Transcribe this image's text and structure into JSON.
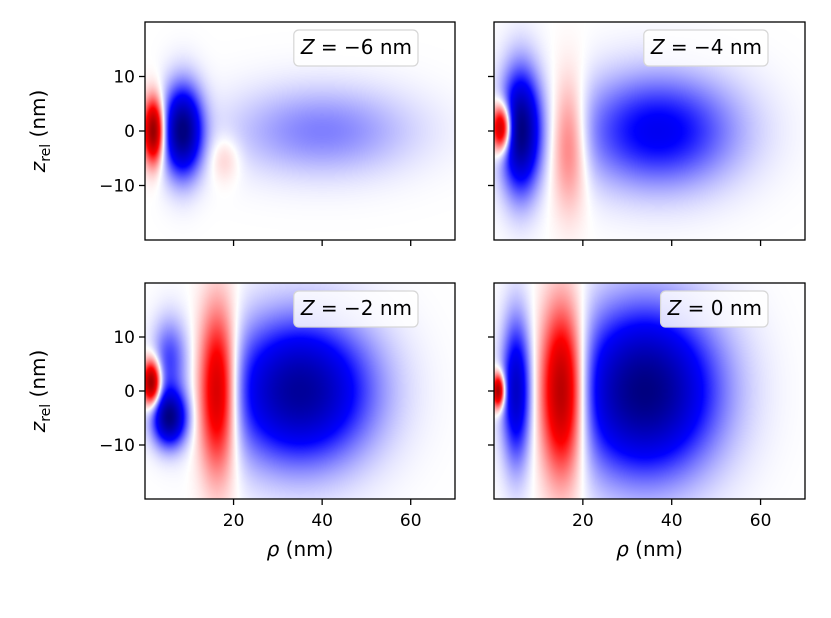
{
  "chart_data": [
    {
      "type": "heatmap",
      "annotation": "Z = −6 nm",
      "annotation_parts": {
        "var": "Z",
        "eq": " = −6 nm"
      },
      "xlim": [
        0,
        70
      ],
      "ylim": [
        -20,
        20
      ],
      "xticks": [
        20,
        40,
        60
      ],
      "yticks": [
        10,
        0,
        -10
      ],
      "xtick_labels": [
        "",
        "",
        ""
      ],
      "ytick_labels": [
        "10",
        "0",
        "−10"
      ],
      "xlabel": "",
      "ylabel": "z_rel (nm)",
      "ylabel_parts": {
        "main": "z",
        "sub": "rel",
        "rest": " (nm)"
      },
      "colormap": "bwr",
      "color_range": [
        -1,
        1
      ],
      "lobes": [
        {
          "rho": 2.0,
          "z": 0.0,
          "sigma_rho": 1.6,
          "sigma_z": 4.0,
          "amp": 1.0
        },
        {
          "rho": 8.5,
          "z": 0.0,
          "sigma_rho": 3.0,
          "sigma_z": 5.5,
          "amp": -1.0
        },
        {
          "rho": 18.0,
          "z": -5.0,
          "sigma_rho": 2.5,
          "sigma_z": 3.0,
          "amp": 0.12
        },
        {
          "rho": 40.0,
          "z": 0.0,
          "sigma_rho": 14.0,
          "sigma_z": 5.5,
          "amp": -0.25
        }
      ]
    },
    {
      "type": "heatmap",
      "annotation": "Z = −4 nm",
      "annotation_parts": {
        "var": "Z",
        "eq": " = −4 nm"
      },
      "xlim": [
        0,
        70
      ],
      "ylim": [
        -20,
        20
      ],
      "xticks": [
        20,
        40,
        60
      ],
      "yticks": [
        10,
        0,
        -10
      ],
      "xtick_labels": [
        "",
        "",
        ""
      ],
      "ytick_labels": [
        "",
        "",
        ""
      ],
      "xlabel": "",
      "ylabel": "",
      "colormap": "bwr",
      "color_range": [
        -1,
        1
      ],
      "lobes": [
        {
          "rho": 1.8,
          "z": 0.5,
          "sigma_rho": 1.6,
          "sigma_z": 3.0,
          "amp": 1.0
        },
        {
          "rho": 6.0,
          "z": 0.0,
          "sigma_rho": 3.0,
          "sigma_z": 7.5,
          "amp": -1.0
        },
        {
          "rho": 17.0,
          "z": -2.0,
          "sigma_rho": 2.8,
          "sigma_z": 8.0,
          "amp": 0.35
        },
        {
          "rho": 37.0,
          "z": 0.0,
          "sigma_rho": 12.0,
          "sigma_z": 7.0,
          "amp": -0.55
        }
      ]
    },
    {
      "type": "heatmap",
      "annotation": "Z = −2 nm",
      "annotation_parts": {
        "var": "Z",
        "eq": " = −2 nm"
      },
      "xlim": [
        0,
        70
      ],
      "ylim": [
        -20,
        20
      ],
      "xticks": [
        20,
        40,
        60
      ],
      "yticks": [
        10,
        0,
        -10
      ],
      "xtick_labels": [
        "20",
        "40",
        "60"
      ],
      "ytick_labels": [
        "10",
        "0",
        "−10"
      ],
      "xlabel": "ρ (nm)",
      "ylabel": "z_rel (nm)",
      "xlabel_parts": {
        "var": "ρ",
        "rest": " (nm)"
      },
      "ylabel_parts": {
        "main": "z",
        "sub": "rel",
        "rest": " (nm)"
      },
      "colormap": "bwr",
      "color_range": [
        -1,
        1
      ],
      "lobes": [
        {
          "rho": 1.5,
          "z": 1.5,
          "sigma_rho": 1.4,
          "sigma_z": 2.8,
          "amp": 1.0
        },
        {
          "rho": 5.5,
          "z": -5.0,
          "sigma_rho": 2.6,
          "sigma_z": 3.5,
          "amp": -0.95
        },
        {
          "rho": 5.5,
          "z": 6.0,
          "sigma_rho": 2.6,
          "sigma_z": 5.0,
          "amp": -0.35
        },
        {
          "rho": 16.5,
          "z": 0.0,
          "sigma_rho": 3.0,
          "sigma_z": 10.0,
          "amp": 0.85
        },
        {
          "rho": 35.0,
          "z": 0.0,
          "sigma_rho": 11.0,
          "sigma_z": 9.0,
          "amp": -0.9
        }
      ]
    },
    {
      "type": "heatmap",
      "annotation": "Z = 0 nm",
      "annotation_parts": {
        "var": "Z",
        "eq": " = 0 nm"
      },
      "xlim": [
        0,
        70
      ],
      "ylim": [
        -20,
        20
      ],
      "xticks": [
        20,
        40,
        60
      ],
      "yticks": [
        10,
        0,
        -10
      ],
      "xtick_labels": [
        "20",
        "40",
        "60"
      ],
      "ytick_labels": [
        "",
        "",
        ""
      ],
      "xlabel": "ρ (nm)",
      "ylabel": "",
      "xlabel_parts": {
        "var": "ρ",
        "rest": " (nm)"
      },
      "colormap": "bwr",
      "color_range": [
        -1,
        1
      ],
      "lobes": [
        {
          "rho": 1.0,
          "z": 0.0,
          "sigma_rho": 1.0,
          "sigma_z": 2.2,
          "amp": 0.95
        },
        {
          "rho": 5.0,
          "z": 0.0,
          "sigma_rho": 2.2,
          "sigma_z": 9.0,
          "amp": -0.7
        },
        {
          "rho": 15.5,
          "z": 0.0,
          "sigma_rho": 3.5,
          "sigma_z": 10.5,
          "amp": 1.0
        },
        {
          "rho": 34.0,
          "z": 0.0,
          "sigma_rho": 11.0,
          "sigma_z": 10.5,
          "amp": -1.0
        }
      ]
    }
  ]
}
